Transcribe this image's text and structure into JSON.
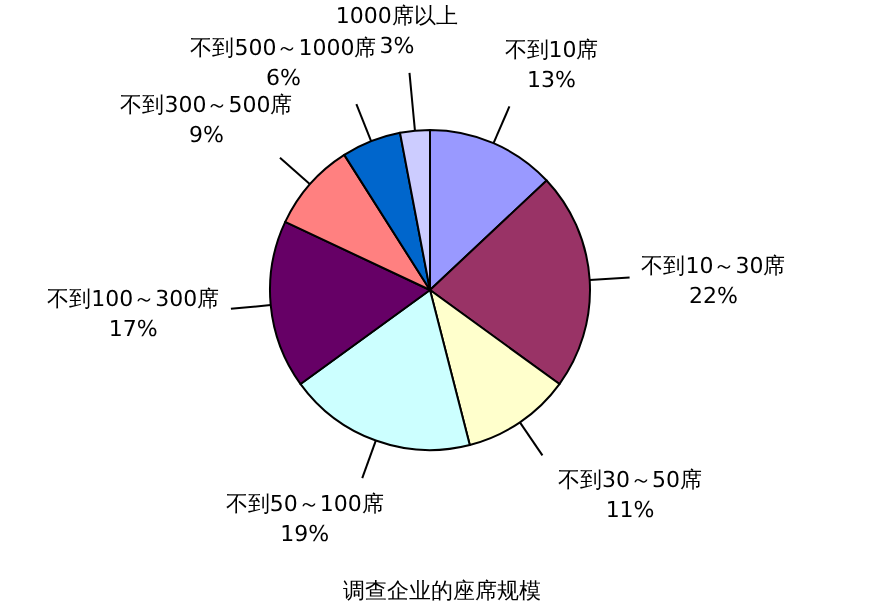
{
  "chart_data": {
    "type": "pie",
    "title": "调查企业的座席规模",
    "categories": [
      "不到10席",
      "不到10～30席",
      "不到30～50席",
      "不到50～100席",
      "不到100～300席",
      "不到300～500席",
      "不到500～1000席",
      "1000席以上"
    ],
    "values": [
      13,
      22,
      11,
      19,
      17,
      9,
      6,
      3
    ],
    "value_labels": [
      "13%",
      "22%",
      "11%",
      "19%",
      "17%",
      "9%",
      "6%",
      "3%"
    ],
    "colors": [
      "#9999ff",
      "#993366",
      "#ffffcc",
      "#ccffff",
      "#660066",
      "#ff8080",
      "#0066cc",
      "#ccccff"
    ]
  }
}
